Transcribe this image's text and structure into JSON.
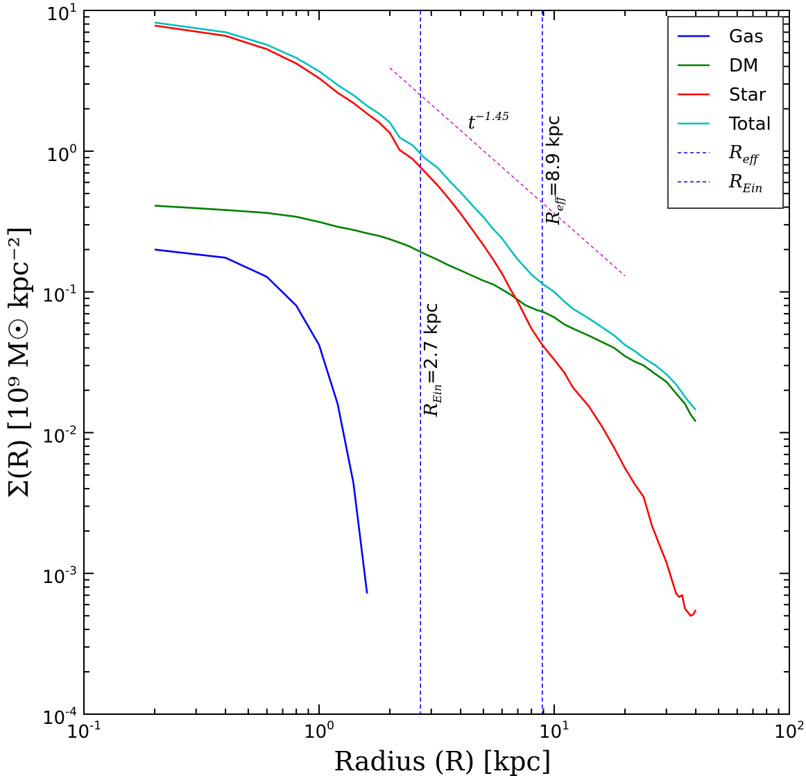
{
  "chart_data": {
    "type": "line",
    "xscale": "log",
    "yscale": "log",
    "xlim": [
      0.1,
      100
    ],
    "ylim": [
      0.0001,
      10
    ],
    "xlabel": "Radius  (R)  [kpc]",
    "ylabel": "Σ(R)  [10⁹  M☉  kpc⁻²]",
    "x_ticks": [
      {
        "value": 0.1,
        "base": "10",
        "exp": "-1"
      },
      {
        "value": 1,
        "base": "10",
        "exp": "0"
      },
      {
        "value": 10,
        "base": "10",
        "exp": "1"
      },
      {
        "value": 100,
        "base": "10",
        "exp": "2"
      }
    ],
    "y_ticks": [
      {
        "value": 0.0001,
        "base": "10",
        "exp": "-4"
      },
      {
        "value": 0.001,
        "base": "10",
        "exp": "-3"
      },
      {
        "value": 0.01,
        "base": "10",
        "exp": "-2"
      },
      {
        "value": 0.1,
        "base": "10",
        "exp": "-1"
      },
      {
        "value": 1,
        "base": "10",
        "exp": "0"
      },
      {
        "value": 10,
        "base": "10",
        "exp": "1"
      }
    ],
    "series": [
      {
        "name": "Gas",
        "color": "#0000ff",
        "points": [
          [
            0.2,
            0.2
          ],
          [
            0.4,
            0.175
          ],
          [
            0.6,
            0.128
          ],
          [
            0.8,
            0.08
          ],
          [
            1.0,
            0.042
          ],
          [
            1.2,
            0.016
          ],
          [
            1.4,
            0.0044
          ],
          [
            1.6,
            0.00072
          ]
        ]
      },
      {
        "name": "DM",
        "color": "#008000",
        "points": [
          [
            0.2,
            0.41
          ],
          [
            0.4,
            0.382
          ],
          [
            0.6,
            0.364
          ],
          [
            0.8,
            0.342
          ],
          [
            1.0,
            0.314
          ],
          [
            1.2,
            0.29
          ],
          [
            1.4,
            0.276
          ],
          [
            1.6,
            0.261
          ],
          [
            1.8,
            0.25
          ],
          [
            2.0,
            0.237
          ],
          [
            2.4,
            0.212
          ],
          [
            2.8,
            0.187
          ],
          [
            3.2,
            0.169
          ],
          [
            3.6,
            0.153
          ],
          [
            4.0,
            0.142
          ],
          [
            4.5,
            0.13
          ],
          [
            5.0,
            0.12
          ],
          [
            5.5,
            0.113
          ],
          [
            6.0,
            0.104
          ],
          [
            6.5,
            0.096
          ],
          [
            7.0,
            0.088
          ],
          [
            7.5,
            0.081
          ],
          [
            8.0,
            0.077
          ],
          [
            8.5,
            0.074
          ],
          [
            9.0,
            0.072
          ],
          [
            10,
            0.066
          ],
          [
            11,
            0.059
          ],
          [
            12,
            0.055
          ],
          [
            14,
            0.049
          ],
          [
            16,
            0.044
          ],
          [
            18,
            0.04
          ],
          [
            20,
            0.035
          ],
          [
            22,
            0.032
          ],
          [
            24,
            0.03
          ],
          [
            27,
            0.026
          ],
          [
            30,
            0.023
          ],
          [
            33,
            0.019
          ],
          [
            36,
            0.016
          ],
          [
            38,
            0.0135
          ],
          [
            40,
            0.012
          ]
        ]
      },
      {
        "name": "Star",
        "color": "#ff0000",
        "points": [
          [
            0.2,
            7.8
          ],
          [
            0.4,
            6.6
          ],
          [
            0.6,
            5.3
          ],
          [
            0.8,
            4.2
          ],
          [
            1.0,
            3.3
          ],
          [
            1.2,
            2.6
          ],
          [
            1.4,
            2.2
          ],
          [
            1.6,
            1.85
          ],
          [
            1.8,
            1.6
          ],
          [
            2.0,
            1.35
          ],
          [
            2.2,
            1.02
          ],
          [
            2.5,
            0.88
          ],
          [
            2.8,
            0.72
          ],
          [
            3.2,
            0.57
          ],
          [
            3.6,
            0.45
          ],
          [
            4.0,
            0.36
          ],
          [
            4.5,
            0.275
          ],
          [
            5.0,
            0.215
          ],
          [
            5.5,
            0.17
          ],
          [
            6.0,
            0.135
          ],
          [
            6.5,
            0.105
          ],
          [
            7.0,
            0.085
          ],
          [
            7.5,
            0.068
          ],
          [
            8.0,
            0.055
          ],
          [
            8.5,
            0.047
          ],
          [
            9.0,
            0.041
          ],
          [
            10,
            0.033
          ],
          [
            11,
            0.027
          ],
          [
            12,
            0.021
          ],
          [
            14,
            0.0155
          ],
          [
            16,
            0.011
          ],
          [
            18,
            0.0078
          ],
          [
            20,
            0.0056
          ],
          [
            22,
            0.0043
          ],
          [
            24,
            0.0035
          ],
          [
            26,
            0.0022
          ],
          [
            28,
            0.0016
          ],
          [
            30,
            0.0012
          ],
          [
            32,
            0.00085
          ],
          [
            33,
            0.00072
          ],
          [
            34,
            0.00068
          ],
          [
            35,
            0.0007
          ],
          [
            36,
            0.00056
          ],
          [
            37,
            0.00053
          ],
          [
            38,
            0.0005
          ],
          [
            39,
            0.00051
          ],
          [
            40,
            0.00055
          ]
        ]
      },
      {
        "name": "Total",
        "color": "#00bfbf",
        "points": [
          [
            0.2,
            8.2
          ],
          [
            0.4,
            7.0
          ],
          [
            0.6,
            5.7
          ],
          [
            0.8,
            4.6
          ],
          [
            1.0,
            3.7
          ],
          [
            1.2,
            2.95
          ],
          [
            1.4,
            2.5
          ],
          [
            1.6,
            2.1
          ],
          [
            1.8,
            1.85
          ],
          [
            2.0,
            1.6
          ],
          [
            2.2,
            1.25
          ],
          [
            2.5,
            1.1
          ],
          [
            2.8,
            0.9
          ],
          [
            3.2,
            0.76
          ],
          [
            3.6,
            0.61
          ],
          [
            4.0,
            0.51
          ],
          [
            4.5,
            0.41
          ],
          [
            5.0,
            0.34
          ],
          [
            5.5,
            0.28
          ],
          [
            6.0,
            0.24
          ],
          [
            6.5,
            0.2
          ],
          [
            7.0,
            0.17
          ],
          [
            7.5,
            0.15
          ],
          [
            8.0,
            0.133
          ],
          [
            8.5,
            0.122
          ],
          [
            9.0,
            0.113
          ],
          [
            10,
            0.1
          ],
          [
            11,
            0.086
          ],
          [
            12,
            0.076
          ],
          [
            14,
            0.065
          ],
          [
            16,
            0.056
          ],
          [
            18,
            0.049
          ],
          [
            20,
            0.042
          ],
          [
            22,
            0.038
          ],
          [
            24,
            0.034
          ],
          [
            27,
            0.03
          ],
          [
            30,
            0.026
          ],
          [
            33,
            0.022
          ],
          [
            36,
            0.018
          ],
          [
            38,
            0.016
          ],
          [
            40,
            0.0145
          ]
        ]
      }
    ],
    "vlines": [
      {
        "name": "R_Ein",
        "x": 2.7,
        "color": "#0000ff",
        "label_var": "R",
        "label_sub": "Ein",
        "label_text": "=2.7 kpc"
      },
      {
        "name": "R_eff",
        "x": 8.9,
        "color": "#0000ff",
        "label_var": "R",
        "label_sub": "eff",
        "label_text": "=8.9 kpc"
      }
    ],
    "power_law": {
      "slope": -1.45,
      "x_start": 2.0,
      "y_start": 3.9,
      "x_end": 20,
      "y_end": 0.13,
      "color": "#cc00cc",
      "label_base": "t",
      "label_exp": "−1.45"
    },
    "legend": {
      "position": "top-right",
      "entries": [
        {
          "label": "Gas",
          "color": "#0000ff",
          "style": "solid"
        },
        {
          "label": "DM",
          "color": "#008000",
          "style": "solid"
        },
        {
          "label": "Star",
          "color": "#ff0000",
          "style": "solid"
        },
        {
          "label": "Total",
          "color": "#00bfbf",
          "style": "solid"
        },
        {
          "label": "R",
          "sub": "eff",
          "color": "#0000ff",
          "style": "dashed"
        },
        {
          "label": "R",
          "sub": "Ein",
          "color": "#0000ff",
          "style": "dashed"
        }
      ]
    }
  }
}
